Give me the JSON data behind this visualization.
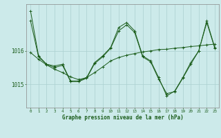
{
  "background_color": "#cceaea",
  "grid_color": "#aad0d0",
  "line_color": "#1a5c1a",
  "xlabel": "Graphe pression niveau de la mer (hPa)",
  "xlim": [
    -0.5,
    23.5
  ],
  "ylim": [
    1014.3,
    1017.4
  ],
  "yticks": [
    1015,
    1016
  ],
  "xticks": [
    0,
    1,
    2,
    3,
    4,
    5,
    6,
    7,
    8,
    9,
    10,
    11,
    12,
    13,
    14,
    15,
    16,
    17,
    18,
    19,
    20,
    21,
    22,
    23
  ],
  "series_main": {
    "x": [
      0,
      1,
      2,
      3,
      4,
      5,
      6,
      7,
      8,
      9,
      10,
      11,
      12,
      13,
      14,
      15,
      16,
      17,
      18,
      19,
      20,
      21,
      22,
      23
    ],
    "y": [
      1017.2,
      1015.85,
      1015.6,
      1015.55,
      1015.6,
      1015.1,
      1015.1,
      1015.2,
      1015.65,
      1015.85,
      1016.1,
      1016.7,
      1016.85,
      1016.6,
      1015.85,
      1015.7,
      1015.2,
      1014.65,
      1014.8,
      1015.2,
      1015.65,
      1016.0,
      1016.9,
      1016.1
    ]
  },
  "series_trend": {
    "x": [
      0,
      1,
      2,
      3,
      4,
      5,
      6,
      7,
      8,
      9,
      10,
      11,
      12,
      13,
      14,
      15,
      16,
      17,
      18,
      19,
      20,
      21,
      22,
      23
    ],
    "y": [
      1015.95,
      1015.75,
      1015.58,
      1015.45,
      1015.35,
      1015.22,
      1015.14,
      1015.2,
      1015.35,
      1015.52,
      1015.7,
      1015.8,
      1015.87,
      1015.92,
      1015.97,
      1016.0,
      1016.04,
      1016.05,
      1016.08,
      1016.1,
      1016.13,
      1016.15,
      1016.18,
      1016.2
    ]
  },
  "series_alt": {
    "x": [
      0,
      1,
      2,
      3,
      4,
      5,
      6,
      7,
      8,
      9,
      10,
      11,
      12,
      13,
      14,
      15,
      16,
      17,
      18,
      19,
      20,
      21,
      22,
      23
    ],
    "y": [
      1016.9,
      1015.82,
      1015.6,
      1015.5,
      1015.57,
      1015.08,
      1015.08,
      1015.18,
      1015.62,
      1015.82,
      1016.08,
      1016.6,
      1016.78,
      1016.55,
      1015.82,
      1015.67,
      1015.15,
      1014.72,
      1014.78,
      1015.18,
      1015.6,
      1016.0,
      1016.85,
      1016.08
    ]
  }
}
